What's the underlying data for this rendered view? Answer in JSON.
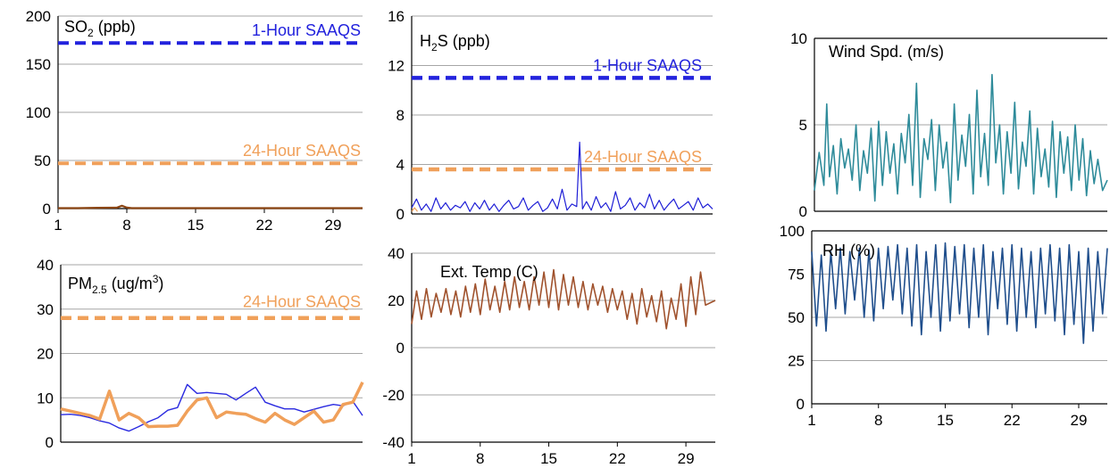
{
  "colors": {
    "so2": "#8b4513",
    "h2s": "#1f1fd6",
    "pm_blue": "#2a2ae0",
    "pm_orange": "#f0a05a",
    "temp": "#a0522d",
    "wind": "#2e8b9a",
    "rh": "#1f4e8c",
    "std_1h": "#2222dd",
    "std_24h": "#f0a05a",
    "grid": "#a6a6a6"
  },
  "chart_data": [
    {
      "id": "so2",
      "type": "line",
      "title_main": "SO",
      "title_sub": "2",
      "title_rest": " (ppb)",
      "ylim": [
        0,
        200
      ],
      "yticks": [
        0,
        50,
        100,
        150,
        200
      ],
      "xticks": [
        1,
        8,
        15,
        22,
        29
      ],
      "xlim": [
        1,
        32
      ],
      "reference_lines": [
        {
          "label": "1-Hour SAAQS",
          "value": 172,
          "color": "#2222dd"
        },
        {
          "label": "24-Hour SAAQS",
          "value": 47,
          "color": "#f0a05a"
        }
      ],
      "series": [
        {
          "color": "#8b4513",
          "x": [
            1,
            3,
            5,
            7,
            7.5,
            8,
            8.5,
            10,
            14,
            18,
            22,
            26,
            30,
            32
          ],
          "values": [
            0.5,
            0.5,
            0.8,
            1,
            3,
            1,
            0.5,
            0.5,
            0.5,
            0.5,
            0.5,
            0.5,
            0.5,
            0.5
          ]
        }
      ]
    },
    {
      "id": "h2s",
      "type": "line",
      "title_main": "H",
      "title_sub": "2",
      "title_rest": "S (ppb)",
      "ylim": [
        0,
        16
      ],
      "yticks": [
        0,
        4,
        8,
        12,
        16
      ],
      "xlim": [
        1,
        32
      ],
      "reference_lines": [
        {
          "label": "1-Hour SAAQS",
          "value": 11,
          "color": "#2222dd"
        },
        {
          "label": "24-Hour SAAQS",
          "value": 3.6,
          "color": "#f0a05a"
        }
      ],
      "series": [
        {
          "color": "#1f1fd6",
          "x": [
            1,
            1.5,
            2,
            2.5,
            3,
            3.5,
            4,
            4.5,
            5,
            5.5,
            6,
            6.5,
            7,
            7.5,
            8,
            8.5,
            9,
            9.5,
            10,
            10.5,
            11,
            11.5,
            12,
            12.5,
            13,
            13.5,
            14,
            14.5,
            15,
            15.5,
            16,
            16.5,
            17,
            17.5,
            18,
            18.3,
            18.6,
            19,
            19.5,
            20,
            20.5,
            21,
            21.5,
            22,
            22.5,
            23,
            23.5,
            24,
            24.5,
            25,
            25.5,
            26,
            26.5,
            27,
            27.5,
            28,
            28.5,
            29,
            29.5,
            30,
            30.5,
            31,
            31.5,
            32
          ],
          "values": [
            0.5,
            1.2,
            0.3,
            0.8,
            0.2,
            1.3,
            0.4,
            0.9,
            0.3,
            0.7,
            0.5,
            1.0,
            0.2,
            0.9,
            0.4,
            1.1,
            0.3,
            0.8,
            0.2,
            0.7,
            1.1,
            0.4,
            0.6,
            1.3,
            0.3,
            0.7,
            1.0,
            0.2,
            0.5,
            1.2,
            0.4,
            2.0,
            0.3,
            0.8,
            0.6,
            5.8,
            0.4,
            1.0,
            0.3,
            1.4,
            0.5,
            0.9,
            0.2,
            1.8,
            0.4,
            0.7,
            1.3,
            0.3,
            0.9,
            0.5,
            1.6,
            0.4,
            1.1,
            0.3,
            0.8,
            1.2,
            0.4,
            0.7,
            1.0,
            0.3,
            1.3,
            0.5,
            0.8,
            0.4
          ]
        },
        {
          "color": "#f0a05a",
          "x": [
            1,
            1.3,
            1.6
          ],
          "values": [
            0.2,
            0.5,
            0.2
          ]
        }
      ]
    },
    {
      "id": "pm25",
      "type": "line",
      "title_main": "PM",
      "title_sub": "2.5",
      "title_rest": " (ug/m",
      "title_sup": "3",
      "title_end": ")",
      "ylim": [
        0,
        40
      ],
      "yticks": [
        0,
        10,
        20,
        30,
        40
      ],
      "xlim": [
        1,
        32
      ],
      "reference_lines": [
        {
          "label": "24-Hour SAAQS",
          "value": 28,
          "color": "#f0a05a"
        }
      ],
      "series": [
        {
          "color": "#2a2ae0",
          "x": [
            1,
            2,
            3,
            4,
            5,
            6,
            7,
            8,
            9,
            10,
            11,
            12,
            13,
            14,
            15,
            16,
            17,
            18,
            19,
            20,
            21,
            22,
            23,
            24,
            25,
            26,
            27,
            28,
            29,
            30,
            31,
            32
          ],
          "values": [
            6.2,
            6.3,
            6.0,
            5.5,
            4.8,
            4.3,
            3.2,
            2.5,
            3.5,
            4.6,
            5.5,
            7.2,
            7.8,
            13,
            11,
            11.2,
            11,
            10.8,
            9.5,
            11,
            12.4,
            9,
            8.2,
            7.5,
            7.5,
            6.8,
            7.4,
            8,
            8.5,
            8.2,
            9.2,
            6
          ]
        },
        {
          "color": "#f0a05a",
          "x": [
            1,
            2,
            3,
            4,
            5,
            6,
            7,
            8,
            9,
            10,
            11,
            12,
            13,
            14,
            15,
            16,
            17,
            18,
            19,
            20,
            21,
            22,
            23,
            24,
            25,
            26,
            27,
            28,
            29,
            30,
            31,
            32
          ],
          "values": [
            7.5,
            7,
            6.5,
            6,
            5.2,
            11.5,
            5,
            6.5,
            5.5,
            3.5,
            3.6,
            3.6,
            3.8,
            7,
            9.5,
            10,
            5.5,
            6.8,
            6.5,
            6.3,
            5.3,
            4.5,
            6.5,
            5,
            4,
            5.5,
            7,
            4.5,
            5,
            8.5,
            9,
            13.5
          ]
        }
      ]
    },
    {
      "id": "temp",
      "type": "line",
      "title_main": "Ext. Temp (C)",
      "title_sub": "",
      "title_rest": "",
      "ylim": [
        -40,
        40
      ],
      "yticks": [
        -40,
        -20,
        0,
        20,
        40
      ],
      "xticks": [
        1,
        8,
        15,
        22,
        29
      ],
      "xlim": [
        1,
        32
      ],
      "reference_lines": [],
      "series": [
        {
          "color": "#a0522d",
          "x": [
            1,
            1.5,
            2,
            2.5,
            3,
            3.5,
            4,
            4.5,
            5,
            5.5,
            6,
            6.5,
            7,
            7.5,
            8,
            8.5,
            9,
            9.5,
            10,
            10.5,
            11,
            11.5,
            12,
            12.5,
            13,
            13.5,
            14,
            14.5,
            15,
            15.5,
            16,
            16.5,
            17,
            17.5,
            18,
            18.5,
            19,
            19.5,
            20,
            20.5,
            21,
            21.5,
            22,
            22.5,
            23,
            23.5,
            24,
            24.5,
            25,
            25.5,
            26,
            26.5,
            27,
            27.5,
            28,
            28.5,
            29,
            29.5,
            30,
            30.5,
            31,
            31.5,
            32
          ],
          "values": [
            10,
            24,
            12,
            25,
            13,
            23,
            15,
            25,
            14,
            24,
            13,
            26,
            15,
            27,
            14,
            29,
            16,
            26,
            15,
            28,
            16,
            30,
            17,
            28,
            16,
            30,
            18,
            32,
            17,
            33,
            16,
            31,
            18,
            30,
            17,
            28,
            16,
            27,
            18,
            26,
            15,
            25,
            16,
            24,
            12,
            23,
            10,
            25,
            13,
            22,
            11,
            24,
            8,
            21,
            12,
            27,
            9,
            30,
            14,
            32,
            18,
            19,
            20
          ]
        }
      ]
    },
    {
      "id": "wind",
      "type": "line",
      "title_main": "Wind Spd. (m/s)",
      "title_sub": "",
      "title_rest": "",
      "ylim": [
        0,
        10
      ],
      "yticks": [
        0,
        5,
        10
      ],
      "xlim": [
        1,
        32
      ],
      "reference_lines": [],
      "series": [
        {
          "color": "#2e8b9a",
          "x": [
            1,
            1.5,
            2,
            2.3,
            2.6,
            3,
            3.4,
            3.8,
            4.2,
            4.6,
            5,
            5.4,
            5.8,
            6.2,
            6.6,
            7,
            7.4,
            7.8,
            8.2,
            8.6,
            9,
            9.4,
            9.8,
            10.2,
            10.6,
            11,
            11.4,
            11.8,
            12.2,
            12.6,
            13,
            13.4,
            13.8,
            14.2,
            14.6,
            15,
            15.4,
            15.8,
            16.2,
            16.6,
            17,
            17.4,
            17.8,
            18.2,
            18.6,
            19,
            19.4,
            19.8,
            20.2,
            20.6,
            21,
            21.4,
            21.8,
            22.2,
            22.6,
            23,
            23.4,
            23.8,
            24.2,
            24.6,
            25,
            25.4,
            25.8,
            26.2,
            26.6,
            27,
            27.4,
            27.8,
            28.2,
            28.6,
            29,
            29.4,
            29.8,
            30.2,
            30.6,
            31,
            31.5,
            32
          ],
          "values": [
            1.2,
            3.4,
            1.5,
            6.2,
            2.0,
            3.8,
            1.0,
            4.2,
            2.5,
            3.6,
            1.8,
            5.0,
            1.2,
            3.5,
            2.2,
            4.8,
            0.6,
            5.2,
            1.5,
            4.6,
            2.2,
            3.9,
            1.0,
            4.5,
            2.8,
            5.6,
            1.5,
            7.4,
            0.8,
            4.2,
            3.0,
            5.3,
            1.2,
            5.0,
            2.5,
            4.0,
            0.5,
            6.2,
            1.8,
            4.4,
            2.6,
            5.6,
            1.0,
            7.0,
            2.0,
            4.5,
            1.5,
            7.9,
            2.8,
            5.0,
            1.0,
            4.6,
            2.2,
            6.3,
            1.3,
            4.0,
            2.6,
            5.8,
            1.0,
            4.8,
            2.0,
            3.6,
            1.4,
            5.2,
            0.8,
            4.6,
            2.2,
            4.3,
            1.2,
            5.0,
            1.8,
            4.2,
            0.9,
            3.5,
            1.6,
            3.0,
            1.2,
            1.8
          ]
        }
      ]
    },
    {
      "id": "rh",
      "type": "line",
      "title_main": "RH (%)",
      "title_sub": "",
      "title_rest": "",
      "ylim": [
        0,
        100
      ],
      "yticks": [
        0,
        25,
        50,
        75,
        100
      ],
      "xticks": [
        1,
        8,
        15,
        22,
        29
      ],
      "xlim": [
        1,
        32
      ],
      "reference_lines": [],
      "series": [
        {
          "color": "#1f4e8c",
          "x": [
            1,
            1.5,
            2,
            2.5,
            3,
            3.5,
            4,
            4.5,
            5,
            5.5,
            6,
            6.5,
            7,
            7.5,
            8,
            8.5,
            9,
            9.5,
            10,
            10.5,
            11,
            11.5,
            12,
            12.5,
            13,
            13.5,
            14,
            14.5,
            15,
            15.5,
            16,
            16.5,
            17,
            17.5,
            18,
            18.5,
            19,
            19.5,
            20,
            20.5,
            21,
            21.5,
            22,
            22.5,
            23,
            23.5,
            24,
            24.5,
            25,
            25.5,
            26,
            26.5,
            27,
            27.5,
            28,
            28.5,
            29,
            29.5,
            30,
            30.5,
            31,
            31.5,
            32
          ],
          "values": [
            88,
            45,
            86,
            42,
            88,
            55,
            90,
            52,
            88,
            60,
            90,
            50,
            89,
            48,
            90,
            55,
            91,
            60,
            92,
            52,
            90,
            45,
            92,
            40,
            88,
            50,
            92,
            42,
            93,
            48,
            91,
            52,
            92,
            44,
            90,
            50,
            92,
            40,
            88,
            55,
            90,
            46,
            92,
            42,
            90,
            50,
            88,
            44,
            90,
            52,
            92,
            48,
            90,
            40,
            92,
            46,
            88,
            35,
            90,
            42,
            88,
            52,
            90
          ]
        }
      ]
    }
  ]
}
